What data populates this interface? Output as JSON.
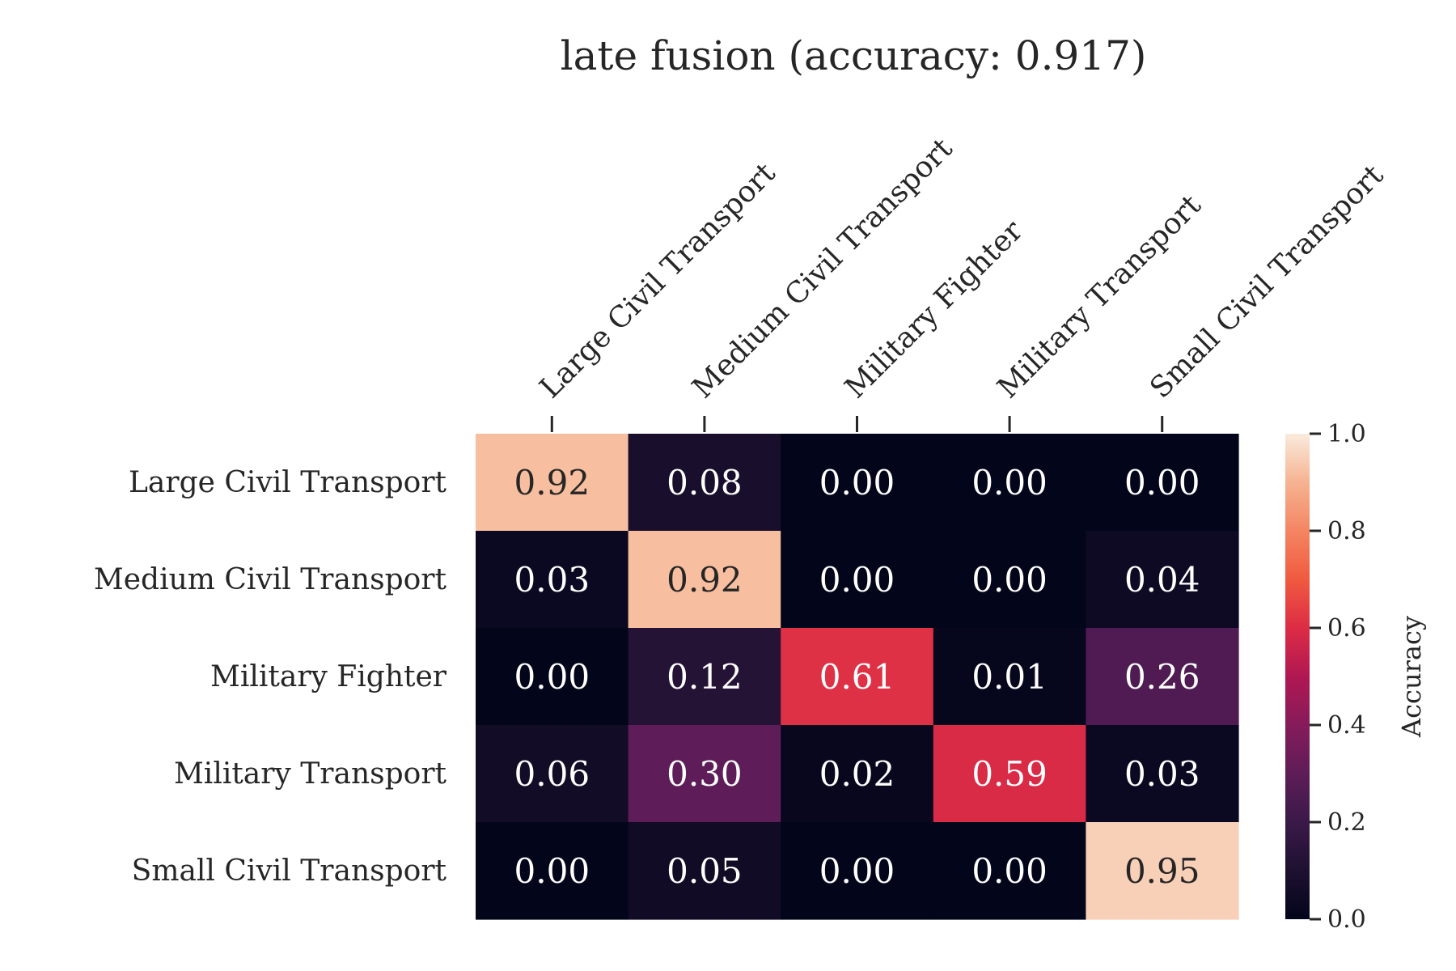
{
  "chart_data": {
    "type": "heatmap",
    "title": "late fusion (accuracy: 0.917)",
    "x_categories": [
      "Large Civil Transport",
      "Medium Civil Transport",
      "Military Fighter",
      "Military Transport",
      "Small Civil Transport"
    ],
    "y_categories": [
      "Large Civil Transport",
      "Medium Civil Transport",
      "Military Fighter",
      "Military Transport",
      "Small Civil Transport"
    ],
    "values": [
      [
        0.92,
        0.08,
        0.0,
        0.0,
        0.0
      ],
      [
        0.03,
        0.92,
        0.0,
        0.0,
        0.04
      ],
      [
        0.0,
        0.12,
        0.61,
        0.01,
        0.26
      ],
      [
        0.06,
        0.3,
        0.02,
        0.59,
        0.03
      ],
      [
        0.0,
        0.05,
        0.0,
        0.0,
        0.95
      ]
    ],
    "value_format": "0.00",
    "colormap": "rocket",
    "vmin": 0.0,
    "vmax": 1.0,
    "x_tick_position": "top",
    "x_tick_rotation": 45,
    "colorbar": {
      "label": "Accuracy",
      "ticks": [
        0.0,
        0.2,
        0.4,
        0.6,
        0.8,
        1.0
      ],
      "tick_labels": [
        "0.0",
        "0.2",
        "0.4",
        "0.6",
        "0.8",
        "1.0"
      ]
    },
    "grid": false
  },
  "colors": {
    "text_dark": "#262626",
    "text_light": "#ffffff"
  }
}
